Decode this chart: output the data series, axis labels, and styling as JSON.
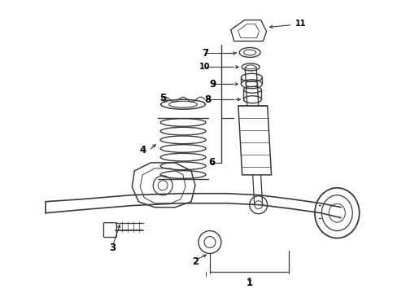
{
  "bg_color": "#ffffff",
  "line_color": "#3a3a3a",
  "text_color": "#000000",
  "fig_width": 4.89,
  "fig_height": 3.6,
  "dpi": 100
}
